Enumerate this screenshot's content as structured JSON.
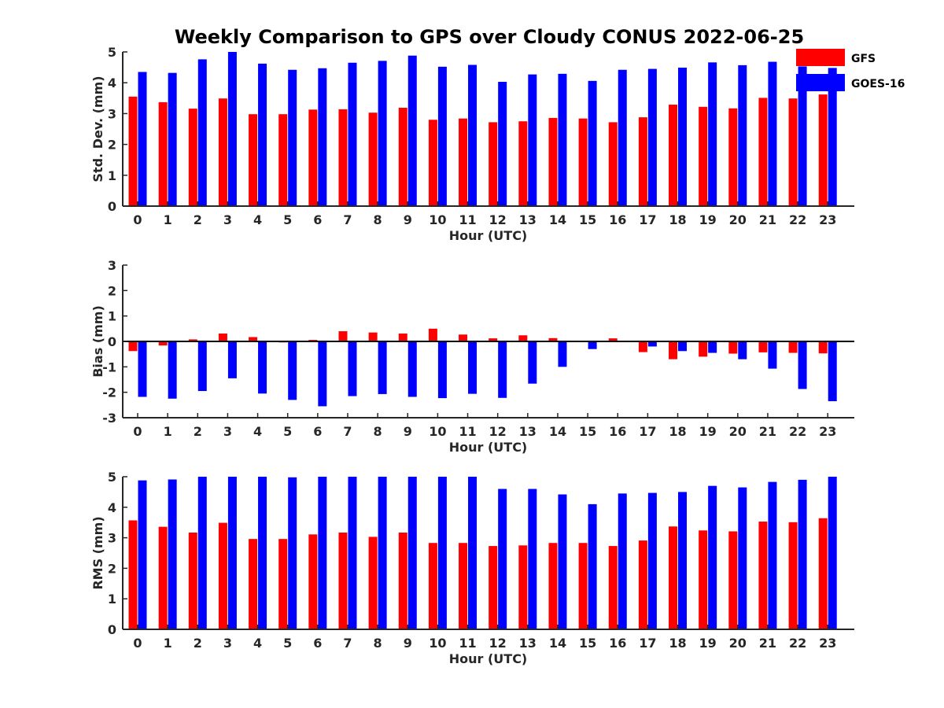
{
  "figure": {
    "title": "Weekly Comparison to GPS over Cloudy CONUS 2022-06-25"
  },
  "legend": [
    {
      "name": "GFS",
      "color": "#ff0000"
    },
    {
      "name": "GOES-16",
      "color": "#0000ff"
    }
  ],
  "chart_data": [
    {
      "type": "bar",
      "title": "Weekly Comparison to GPS over Cloudy CONUS 2022-06-25",
      "xlabel": "Hour (UTC)",
      "ylabel": "Std. Dev. (mm)",
      "ylim": [
        0,
        5
      ],
      "yticks": [
        0,
        1,
        2,
        3,
        4,
        5
      ],
      "categories": [
        "0",
        "1",
        "2",
        "3",
        "4",
        "5",
        "6",
        "7",
        "8",
        "9",
        "10",
        "11",
        "12",
        "13",
        "14",
        "15",
        "16",
        "17",
        "18",
        "19",
        "20",
        "21",
        "22",
        "23"
      ],
      "series": [
        {
          "name": "GFS",
          "color": "#ff0000",
          "values": [
            3.55,
            3.37,
            3.16,
            3.49,
            2.98,
            2.98,
            3.13,
            3.14,
            3.03,
            3.19,
            2.8,
            2.84,
            2.72,
            2.75,
            2.86,
            2.84,
            2.72,
            2.88,
            3.29,
            3.22,
            3.17,
            3.51,
            3.49,
            3.62
          ]
        },
        {
          "name": "GOES-16",
          "color": "#0000ff",
          "values": [
            4.35,
            4.32,
            4.76,
            5.0,
            4.62,
            4.42,
            4.47,
            4.65,
            4.71,
            4.88,
            4.52,
            4.58,
            4.03,
            4.27,
            4.29,
            4.06,
            4.42,
            4.45,
            4.49,
            4.66,
            4.57,
            4.68,
            4.53,
            4.48
          ]
        }
      ],
      "grid": false,
      "legend": "top-right"
    },
    {
      "type": "bar",
      "xlabel": "Hour (UTC)",
      "ylabel": "Bias (mm)",
      "ylim": [
        -3,
        3
      ],
      "yticks": [
        -3,
        -2,
        -1,
        0,
        1,
        2,
        3
      ],
      "categories": [
        "0",
        "1",
        "2",
        "3",
        "4",
        "5",
        "6",
        "7",
        "8",
        "9",
        "10",
        "11",
        "12",
        "13",
        "14",
        "15",
        "16",
        "17",
        "18",
        "19",
        "20",
        "21",
        "22",
        "23"
      ],
      "series": [
        {
          "name": "GFS",
          "color": "#ff0000",
          "values": [
            -0.38,
            -0.16,
            0.08,
            0.31,
            0.17,
            -0.04,
            0.06,
            0.4,
            0.35,
            0.31,
            0.5,
            0.27,
            0.12,
            0.24,
            0.13,
            0.0,
            0.12,
            -0.42,
            -0.7,
            -0.6,
            -0.48,
            -0.43,
            -0.45,
            -0.47
          ]
        },
        {
          "name": "GOES-16",
          "color": "#0000ff",
          "values": [
            -2.18,
            -2.25,
            -1.95,
            -1.45,
            -2.05,
            -2.3,
            -2.55,
            -2.15,
            -2.07,
            -2.18,
            -2.23,
            -2.06,
            -2.22,
            -1.66,
            -1.0,
            -0.3,
            -0.03,
            -0.2,
            -0.38,
            -0.45,
            -0.7,
            -1.07,
            -1.87,
            -2.35
          ]
        }
      ],
      "grid": false
    },
    {
      "type": "bar",
      "xlabel": "Hour (UTC)",
      "ylabel": "RMS (mm)",
      "ylim": [
        0,
        5
      ],
      "yticks": [
        0,
        1,
        2,
        3,
        4,
        5
      ],
      "categories": [
        "0",
        "1",
        "2",
        "3",
        "4",
        "5",
        "6",
        "7",
        "8",
        "9",
        "10",
        "11",
        "12",
        "13",
        "14",
        "15",
        "16",
        "17",
        "18",
        "19",
        "20",
        "21",
        "22",
        "23"
      ],
      "series": [
        {
          "name": "GFS",
          "color": "#ff0000",
          "values": [
            3.57,
            3.36,
            3.17,
            3.49,
            2.96,
            2.96,
            3.11,
            3.17,
            3.03,
            3.17,
            2.83,
            2.83,
            2.73,
            2.75,
            2.83,
            2.83,
            2.73,
            2.91,
            3.37,
            3.24,
            3.21,
            3.53,
            3.51,
            3.64
          ]
        },
        {
          "name": "GOES-16",
          "color": "#0000ff",
          "values": [
            4.88,
            4.91,
            5.0,
            5.0,
            5.0,
            4.98,
            5.0,
            5.0,
            5.0,
            5.0,
            5.0,
            5.0,
            4.6,
            4.6,
            4.42,
            4.1,
            4.45,
            4.47,
            4.5,
            4.7,
            4.65,
            4.83,
            4.9,
            5.0
          ]
        }
      ],
      "grid": false
    }
  ]
}
